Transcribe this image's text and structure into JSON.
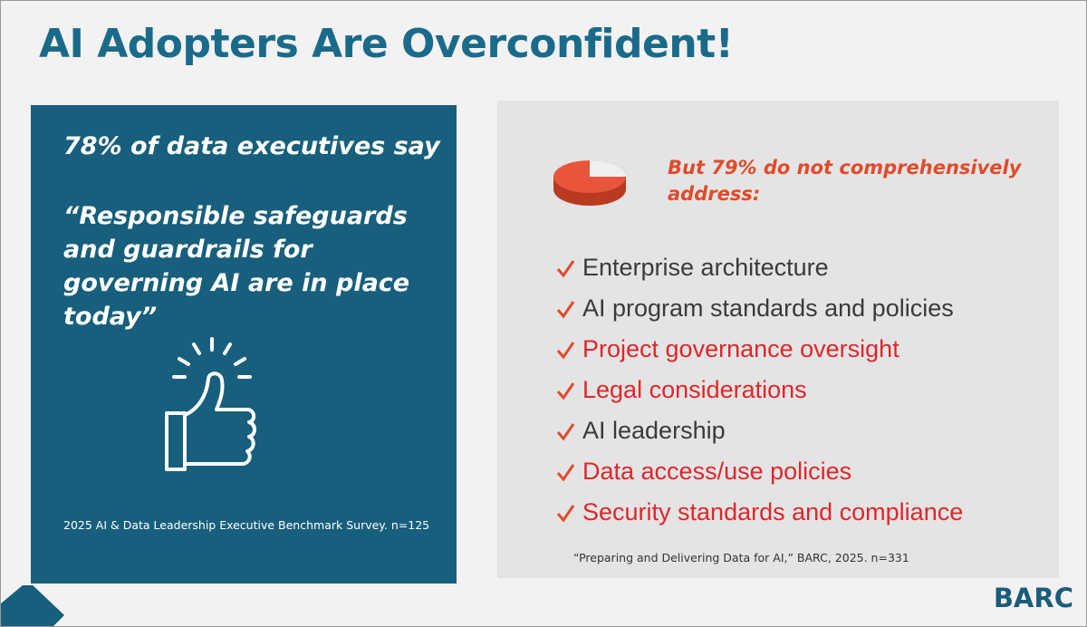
{
  "title": "AI Adopters Are Overconfident!",
  "left_panel": {
    "stat": "78% of data executives say",
    "quote": "“Responsible safeguards and guardrails for governing AI are in place today”",
    "source": "2025 AI & Data Leadership Executive Benchmark Survey. n=125"
  },
  "right_panel": {
    "headline": "But 79% do not comprehensively address:",
    "items": [
      {
        "text": "Enterprise architecture",
        "color": "#3a3a3a"
      },
      {
        "text": "AI program standards and policies",
        "color": "#3a3a3a"
      },
      {
        "text": "Project governance oversight",
        "color": "#e0262b"
      },
      {
        "text": "Legal considerations",
        "color": "#e0262b"
      },
      {
        "text": "AI leadership",
        "color": "#3a3a3a"
      },
      {
        "text": "Data access/use policies",
        "color": "#e0262b"
      },
      {
        "text": "Security standards and compliance",
        "color": "#e0262b"
      }
    ],
    "source": "“Preparing and Delivering Data for AI,” BARC, 2025.  n=331"
  },
  "logo": "BARC"
}
